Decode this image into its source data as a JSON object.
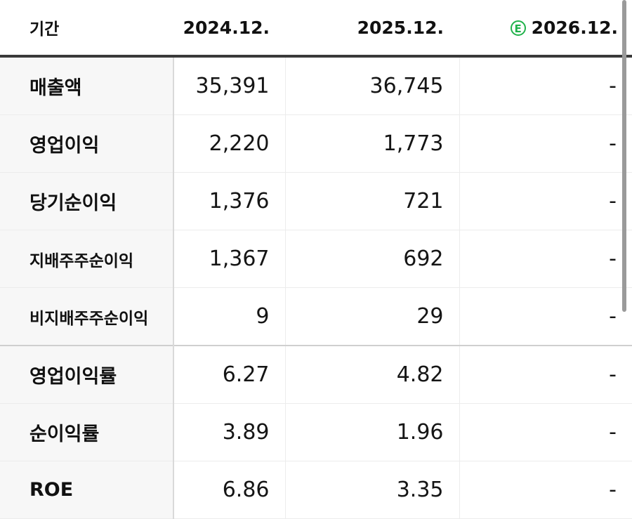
{
  "header": {
    "label": "기간",
    "periods": [
      {
        "text": "2024.12.",
        "estimate": false
      },
      {
        "text": "2025.12.",
        "estimate": false
      },
      {
        "text": "2026.12.",
        "estimate": true,
        "estimate_mark": "E"
      }
    ]
  },
  "colors": {
    "estimate_accent": "#21b24b",
    "header_rule": "#3a3a3a",
    "label_bg": "#f7f7f7"
  },
  "rows": [
    {
      "label": "매출액",
      "values": [
        "35,391",
        "36,745",
        "-"
      ]
    },
    {
      "label": "영업이익",
      "values": [
        "2,220",
        "1,773",
        "-"
      ]
    },
    {
      "label": "당기순이익",
      "values": [
        "1,376",
        "721",
        "-"
      ]
    },
    {
      "label": "지배주주순이익",
      "values": [
        "1,367",
        "692",
        "-"
      ]
    },
    {
      "label": "비지배주주순이익",
      "values": [
        "9",
        "29",
        "-"
      ]
    },
    {
      "label": "영업이익률",
      "values": [
        "6.27",
        "4.82",
        "-"
      ]
    },
    {
      "label": "순이익률",
      "values": [
        "3.89",
        "1.96",
        "-"
      ]
    },
    {
      "label": "ROE",
      "values": [
        "6.86",
        "3.35",
        "-"
      ]
    }
  ]
}
